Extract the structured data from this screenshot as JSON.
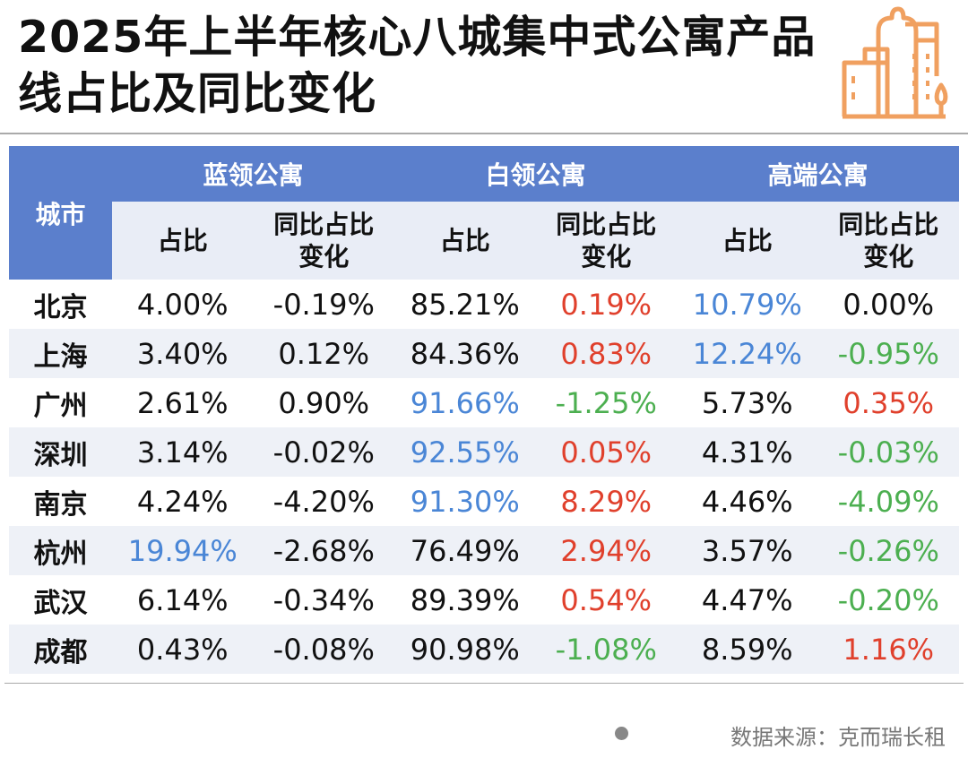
{
  "title": "2025年上半年核心八城集中式公寓产品线占比及同比变化",
  "header": {
    "city": "城市",
    "groups": [
      "蓝领公寓",
      "白领公寓",
      "高端公寓"
    ],
    "share": "占比",
    "yoy": "同比占比变化"
  },
  "colors": {
    "header": "#5b7fcc",
    "blue": "#4a86d6",
    "red": "#e0402c",
    "green": "#4caf50",
    "logo": "#f0a060"
  },
  "rows": [
    {
      "city": "北京",
      "v": [
        "4.00%",
        "-0.19%",
        "85.21%",
        "0.19%",
        "10.79%",
        "0.00%"
      ],
      "c": [
        "",
        "",
        "",
        "red",
        "blue",
        ""
      ]
    },
    {
      "city": "上海",
      "v": [
        "3.40%",
        "0.12%",
        "84.36%",
        "0.83%",
        "12.24%",
        "-0.95%"
      ],
      "c": [
        "",
        "",
        "",
        "red",
        "blue",
        "green"
      ]
    },
    {
      "city": "广州",
      "v": [
        "2.61%",
        "0.90%",
        "91.66%",
        "-1.25%",
        "5.73%",
        "0.35%"
      ],
      "c": [
        "",
        "",
        "blue",
        "green",
        "",
        "red"
      ]
    },
    {
      "city": "深圳",
      "v": [
        "3.14%",
        "-0.02%",
        "92.55%",
        "0.05%",
        "4.31%",
        "-0.03%"
      ],
      "c": [
        "",
        "",
        "blue",
        "red",
        "",
        "green"
      ]
    },
    {
      "city": "南京",
      "v": [
        "4.24%",
        "-4.20%",
        "91.30%",
        "8.29%",
        "4.46%",
        "-4.09%"
      ],
      "c": [
        "",
        "",
        "blue",
        "red",
        "",
        "green"
      ]
    },
    {
      "city": "杭州",
      "v": [
        "19.94%",
        "-2.68%",
        "76.49%",
        "2.94%",
        "3.57%",
        "-0.26%"
      ],
      "c": [
        "blue",
        "",
        "",
        "red",
        "",
        "green"
      ]
    },
    {
      "city": "武汉",
      "v": [
        "6.14%",
        "-0.34%",
        "89.39%",
        "0.54%",
        "4.47%",
        "-0.20%"
      ],
      "c": [
        "",
        "",
        "",
        "red",
        "",
        "green"
      ]
    },
    {
      "city": "成都",
      "v": [
        "0.43%",
        "-0.08%",
        "90.98%",
        "-1.08%",
        "8.59%",
        "1.16%"
      ],
      "c": [
        "",
        "",
        "",
        "green",
        "",
        "red"
      ]
    }
  ],
  "source": "数据来源：克而瑞长租"
}
